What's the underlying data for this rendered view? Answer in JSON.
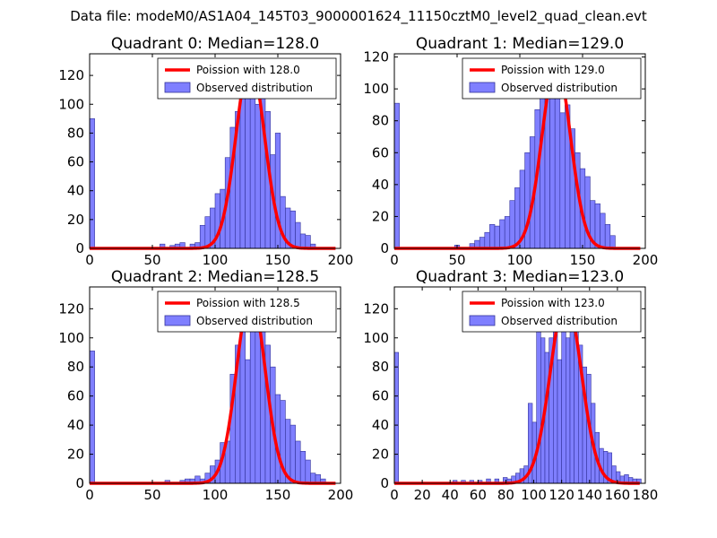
{
  "suptitle": "Data file: modeM0/AS1A04_145T03_9000001624_11150cztM0_level2_quad_clean.evt",
  "colors": {
    "bar": "#7f7fff",
    "bar_edge": "#333399",
    "fit": "#ff0000"
  },
  "chart_data": [
    {
      "type": "bar",
      "title": "Quadrant 0: Median=128.0",
      "legend": {
        "placement": "top-right",
        "fit_label": "Poission with 128.0",
        "hist_label": "Observed distribution"
      },
      "xlim": [
        0,
        200
      ],
      "ylim": [
        0,
        135
      ],
      "xticks": [
        0,
        50,
        100,
        150,
        200
      ],
      "yticks": [
        0,
        20,
        40,
        60,
        80,
        100,
        120
      ],
      "bin_width": 4,
      "bins": [
        [
          0,
          90
        ],
        [
          56,
          3
        ],
        [
          64,
          2
        ],
        [
          68,
          3
        ],
        [
          72,
          4
        ],
        [
          80,
          3
        ],
        [
          84,
          4
        ],
        [
          88,
          16
        ],
        [
          92,
          22
        ],
        [
          96,
          28
        ],
        [
          100,
          38
        ],
        [
          104,
          41
        ],
        [
          108,
          63
        ],
        [
          112,
          84
        ],
        [
          116,
          95
        ],
        [
          120,
          105
        ],
        [
          124,
          115
        ],
        [
          128,
          105
        ],
        [
          132,
          100
        ],
        [
          136,
          105
        ],
        [
          140,
          95
        ],
        [
          144,
          65
        ],
        [
          148,
          80
        ],
        [
          152,
          36
        ],
        [
          156,
          28
        ],
        [
          160,
          26
        ],
        [
          164,
          18
        ],
        [
          168,
          10
        ],
        [
          172,
          9
        ],
        [
          176,
          3
        ]
      ],
      "fit_mean": 128.0,
      "fit_peak": 130
    },
    {
      "type": "bar",
      "title": "Quadrant 1: Median=129.0",
      "legend": {
        "placement": "top-right",
        "fit_label": "Poission with 129.0",
        "hist_label": "Observed distribution"
      },
      "xlim": [
        0,
        200
      ],
      "ylim": [
        0,
        122
      ],
      "xticks": [
        0,
        50,
        100,
        150,
        200
      ],
      "yticks": [
        0,
        20,
        40,
        60,
        80,
        100,
        120
      ],
      "bin_width": 4,
      "bins": [
        [
          0,
          91
        ],
        [
          48,
          2
        ],
        [
          60,
          3
        ],
        [
          64,
          5
        ],
        [
          68,
          7
        ],
        [
          72,
          10
        ],
        [
          76,
          15
        ],
        [
          80,
          14
        ],
        [
          84,
          18
        ],
        [
          88,
          20
        ],
        [
          92,
          30
        ],
        [
          96,
          38
        ],
        [
          100,
          49
        ],
        [
          104,
          60
        ],
        [
          108,
          70
        ],
        [
          112,
          87
        ],
        [
          116,
          108
        ],
        [
          120,
          112
        ],
        [
          124,
          100
        ],
        [
          128,
          105
        ],
        [
          132,
          85
        ],
        [
          136,
          90
        ],
        [
          140,
          75
        ],
        [
          144,
          60
        ],
        [
          148,
          50
        ],
        [
          152,
          45
        ],
        [
          156,
          30
        ],
        [
          160,
          28
        ],
        [
          164,
          22
        ],
        [
          168,
          15
        ],
        [
          172,
          8
        ]
      ],
      "fit_mean": 129.0,
      "fit_peak": 116
    },
    {
      "type": "bar",
      "title": "Quadrant 2: Median=128.5",
      "legend": {
        "placement": "top-right",
        "fit_label": "Poission with 128.5",
        "hist_label": "Observed distribution"
      },
      "xlim": [
        0,
        200
      ],
      "ylim": [
        0,
        135
      ],
      "xticks": [
        0,
        50,
        100,
        150,
        200
      ],
      "yticks": [
        0,
        20,
        40,
        60,
        80,
        100,
        120
      ],
      "bin_width": 4,
      "bins": [
        [
          0,
          91
        ],
        [
          60,
          2
        ],
        [
          72,
          2
        ],
        [
          76,
          3
        ],
        [
          80,
          3
        ],
        [
          84,
          5
        ],
        [
          88,
          3
        ],
        [
          92,
          7
        ],
        [
          96,
          12
        ],
        [
          100,
          16
        ],
        [
          104,
          28
        ],
        [
          108,
          29
        ],
        [
          112,
          75
        ],
        [
          116,
          95
        ],
        [
          120,
          108
        ],
        [
          124,
          85
        ],
        [
          128,
          105
        ],
        [
          132,
          112
        ],
        [
          136,
          125
        ],
        [
          140,
          95
        ],
        [
          144,
          80
        ],
        [
          148,
          61
        ],
        [
          152,
          57
        ],
        [
          156,
          44
        ],
        [
          160,
          40
        ],
        [
          164,
          29
        ],
        [
          168,
          22
        ],
        [
          172,
          16
        ],
        [
          176,
          7
        ],
        [
          180,
          6
        ],
        [
          184,
          3
        ]
      ],
      "fit_mean": 128.5,
      "fit_peak": 130
    },
    {
      "type": "bar",
      "title": "Quadrant 3: Median=123.0",
      "legend": {
        "placement": "top-right",
        "fit_label": "Poission with 123.0",
        "hist_label": "Observed distribution"
      },
      "xlim": [
        0,
        180
      ],
      "ylim": [
        0,
        135
      ],
      "xticks": [
        0,
        20,
        40,
        60,
        80,
        100,
        120,
        140,
        160,
        180
      ],
      "yticks": [
        0,
        20,
        40,
        60,
        80,
        100,
        120
      ],
      "bin_width": 3,
      "bins": [
        [
          0,
          90
        ],
        [
          42,
          2
        ],
        [
          48,
          2
        ],
        [
          54,
          2
        ],
        [
          60,
          2
        ],
        [
          66,
          3
        ],
        [
          72,
          3
        ],
        [
          78,
          4
        ],
        [
          81,
          3
        ],
        [
          84,
          5
        ],
        [
          87,
          7
        ],
        [
          90,
          10
        ],
        [
          93,
          12
        ],
        [
          96,
          55
        ],
        [
          99,
          42
        ],
        [
          102,
          108
        ],
        [
          105,
          100
        ],
        [
          108,
          90
        ],
        [
          111,
          100
        ],
        [
          114,
          110
        ],
        [
          117,
          85
        ],
        [
          120,
          110
        ],
        [
          123,
          100
        ],
        [
          126,
          120
        ],
        [
          129,
          115
        ],
        [
          132,
          95
        ],
        [
          135,
          80
        ],
        [
          138,
          75
        ],
        [
          141,
          55
        ],
        [
          144,
          35
        ],
        [
          147,
          24
        ],
        [
          150,
          22
        ],
        [
          153,
          21
        ],
        [
          156,
          12
        ],
        [
          159,
          8
        ],
        [
          162,
          5
        ],
        [
          165,
          6
        ],
        [
          168,
          4
        ],
        [
          171,
          3
        ],
        [
          174,
          3
        ]
      ],
      "fit_mean": 123.0,
      "fit_peak": 127
    }
  ]
}
